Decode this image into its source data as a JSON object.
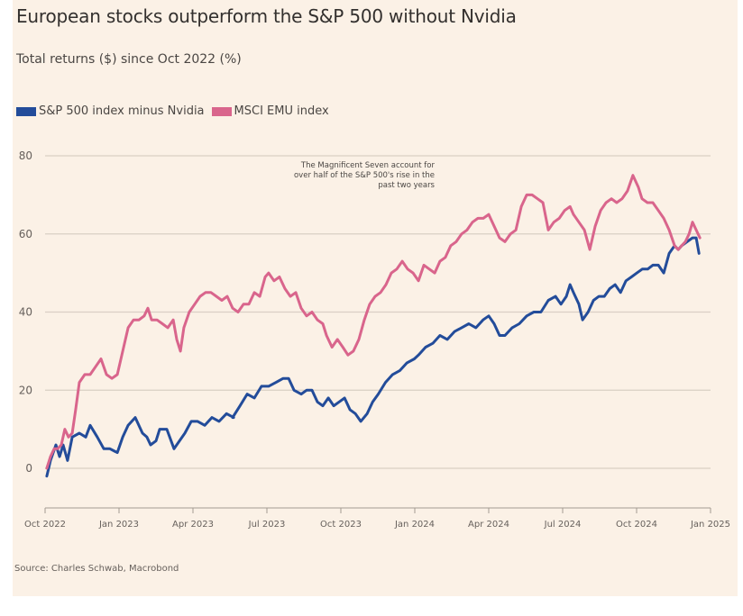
{
  "chart_data": {
    "type": "line",
    "title": "European stocks outperform the S&P 500 without Nvidia",
    "subtitle": "Total returns ($) since Oct 2022 (%)",
    "xlabel": "",
    "ylabel": "",
    "x_unit": "months since Oct 2022",
    "xlim": [
      0,
      27
    ],
    "ylim": [
      -10,
      80
    ],
    "yticks": [
      0,
      20,
      40,
      60,
      80
    ],
    "xticks": [
      {
        "pos": 0,
        "label": "Oct 2022"
      },
      {
        "pos": 3,
        "label": "Jan 2023"
      },
      {
        "pos": 6,
        "label": "Apr 2023"
      },
      {
        "pos": 9,
        "label": "Jul 2023"
      },
      {
        "pos": 12,
        "label": "Oct 2023"
      },
      {
        "pos": 15,
        "label": "Jan 2024"
      },
      {
        "pos": 18,
        "label": "Apr 2024"
      },
      {
        "pos": 21,
        "label": "Jul 2024"
      },
      {
        "pos": 24,
        "label": "Oct 2024"
      },
      {
        "pos": 27,
        "label": "Jan 2025"
      }
    ],
    "grid": true,
    "legend_position": "top-left",
    "annotation": {
      "lines": [
        "The Magnificent Seven account for",
        "over half of the S&P 500's rise in the",
        "past two years"
      ],
      "anchor_month": 16.4,
      "anchor_value": 78
    },
    "series": [
      {
        "name": "S&P 500 index minus Nvidia",
        "color": "#234c9a",
        "x": [
          0.07,
          0.22,
          0.44,
          0.59,
          0.73,
          0.91,
          1.1,
          1.39,
          1.65,
          1.83,
          2.12,
          2.38,
          2.63,
          2.93,
          3.15,
          3.37,
          3.66,
          3.95,
          4.13,
          4.28,
          4.5,
          4.65,
          4.94,
          5.23,
          5.45,
          5.67,
          5.93,
          6.19,
          6.48,
          6.77,
          7.06,
          7.36,
          7.65,
          7.61,
          7.91,
          8.2,
          8.49,
          8.78,
          9.07,
          9.37,
          9.66,
          9.88,
          10.1,
          10.39,
          10.61,
          10.83,
          11.05,
          11.27,
          11.49,
          11.71,
          11.93,
          12.15,
          12.37,
          12.59,
          12.81,
          13.07,
          13.29,
          13.52,
          13.81,
          14.1,
          14.39,
          14.68,
          14.98,
          15.15,
          15.44,
          15.73,
          16.02,
          16.32,
          16.61,
          16.9,
          17.19,
          17.48,
          17.77,
          18.0,
          18.22,
          18.44,
          18.66,
          18.95,
          19.24,
          19.54,
          19.83,
          20.12,
          20.42,
          20.71,
          20.93,
          21.15,
          21.3,
          21.44,
          21.66,
          21.81,
          22.03,
          22.25,
          22.47,
          22.69,
          22.91,
          23.13,
          23.35,
          23.57,
          23.79,
          24.01,
          24.23,
          24.45,
          24.66,
          24.88,
          25.1,
          25.32,
          25.54,
          25.69,
          25.83,
          26.05,
          26.27,
          26.42,
          26.53
        ],
        "values": [
          -2,
          2,
          6,
          3,
          6,
          2,
          8,
          9,
          8,
          11,
          8,
          5,
          5,
          4,
          8,
          11,
          13,
          9,
          8,
          6,
          7,
          10,
          10,
          5,
          7,
          9,
          12,
          12,
          11,
          13,
          12,
          14,
          13,
          13,
          16,
          19,
          18,
          21,
          21,
          22,
          23,
          23,
          20,
          19,
          20,
          20,
          17,
          16,
          18,
          16,
          17,
          18,
          15,
          14,
          12,
          14,
          17,
          19,
          22,
          24,
          25,
          27,
          28,
          29,
          31,
          32,
          34,
          33,
          35,
          36,
          37,
          36,
          38,
          39,
          37,
          34,
          34,
          36,
          37,
          39,
          40,
          40,
          43,
          44,
          42,
          44,
          47,
          45,
          42,
          38,
          40,
          43,
          44,
          44,
          46,
          47,
          45,
          48,
          49,
          50,
          51,
          51,
          52,
          52,
          50,
          55,
          57,
          56,
          57,
          58,
          59,
          59,
          55
        ]
      },
      {
        "name": "MSCI EMU index",
        "color": "#d9658c",
        "x": [
          0.07,
          0.22,
          0.37,
          0.51,
          0.66,
          0.8,
          0.95,
          1.1,
          1.24,
          1.39,
          1.61,
          1.83,
          2.05,
          2.27,
          2.49,
          2.71,
          2.93,
          3.15,
          3.37,
          3.59,
          3.81,
          4.02,
          4.17,
          4.32,
          4.54,
          4.76,
          4.98,
          5.2,
          5.34,
          5.49,
          5.63,
          5.85,
          6.07,
          6.29,
          6.51,
          6.73,
          6.95,
          7.17,
          7.39,
          7.61,
          7.83,
          8.05,
          8.27,
          8.49,
          8.71,
          8.93,
          9.07,
          9.29,
          9.51,
          9.73,
          9.95,
          10.17,
          10.39,
          10.61,
          10.83,
          11.05,
          11.27,
          11.42,
          11.64,
          11.86,
          12.08,
          12.29,
          12.51,
          12.73,
          12.95,
          13.17,
          13.39,
          13.61,
          13.83,
          14.05,
          14.27,
          14.49,
          14.71,
          14.93,
          15.15,
          15.37,
          15.59,
          15.81,
          16.02,
          16.24,
          16.46,
          16.68,
          16.9,
          17.12,
          17.34,
          17.56,
          17.78,
          18.0,
          18.22,
          18.44,
          18.66,
          18.88,
          19.1,
          19.32,
          19.54,
          19.76,
          19.98,
          20.2,
          20.42,
          20.64,
          20.86,
          21.08,
          21.3,
          21.44,
          21.66,
          21.88,
          22.1,
          22.32,
          22.54,
          22.76,
          22.98,
          23.19,
          23.41,
          23.63,
          23.85,
          24.07,
          24.22,
          24.44,
          24.66,
          24.88,
          25.1,
          25.32,
          25.54,
          25.69,
          25.83,
          25.98,
          26.13,
          26.27,
          26.42,
          26.57
        ],
        "values": [
          0,
          3,
          5,
          5,
          6,
          10,
          8,
          9,
          15,
          22,
          24,
          24,
          26,
          28,
          24,
          23,
          24,
          30,
          36,
          38,
          38,
          39,
          41,
          38,
          38,
          37,
          36,
          38,
          33,
          30,
          36,
          40,
          42,
          44,
          45,
          45,
          44,
          43,
          44,
          41,
          40,
          42,
          42,
          45,
          44,
          49,
          50,
          48,
          49,
          46,
          44,
          45,
          41,
          39,
          40,
          38,
          37,
          34,
          31,
          33,
          31,
          29,
          30,
          33,
          38,
          42,
          44,
          45,
          47,
          50,
          51,
          53,
          51,
          50,
          48,
          52,
          51,
          50,
          53,
          54,
          57,
          58,
          60,
          61,
          63,
          64,
          64,
          65,
          62,
          59,
          58,
          60,
          61,
          67,
          70,
          70,
          69,
          68,
          61,
          63,
          64,
          66,
          67,
          65,
          63,
          61,
          56,
          62,
          66,
          68,
          69,
          68,
          69,
          71,
          75,
          72,
          69,
          68,
          68,
          66,
          64,
          61,
          57,
          56,
          57,
          58,
          60,
          63,
          61,
          59
        ]
      }
    ]
  },
  "source": "Source: Charles Schwab, Macrobond"
}
